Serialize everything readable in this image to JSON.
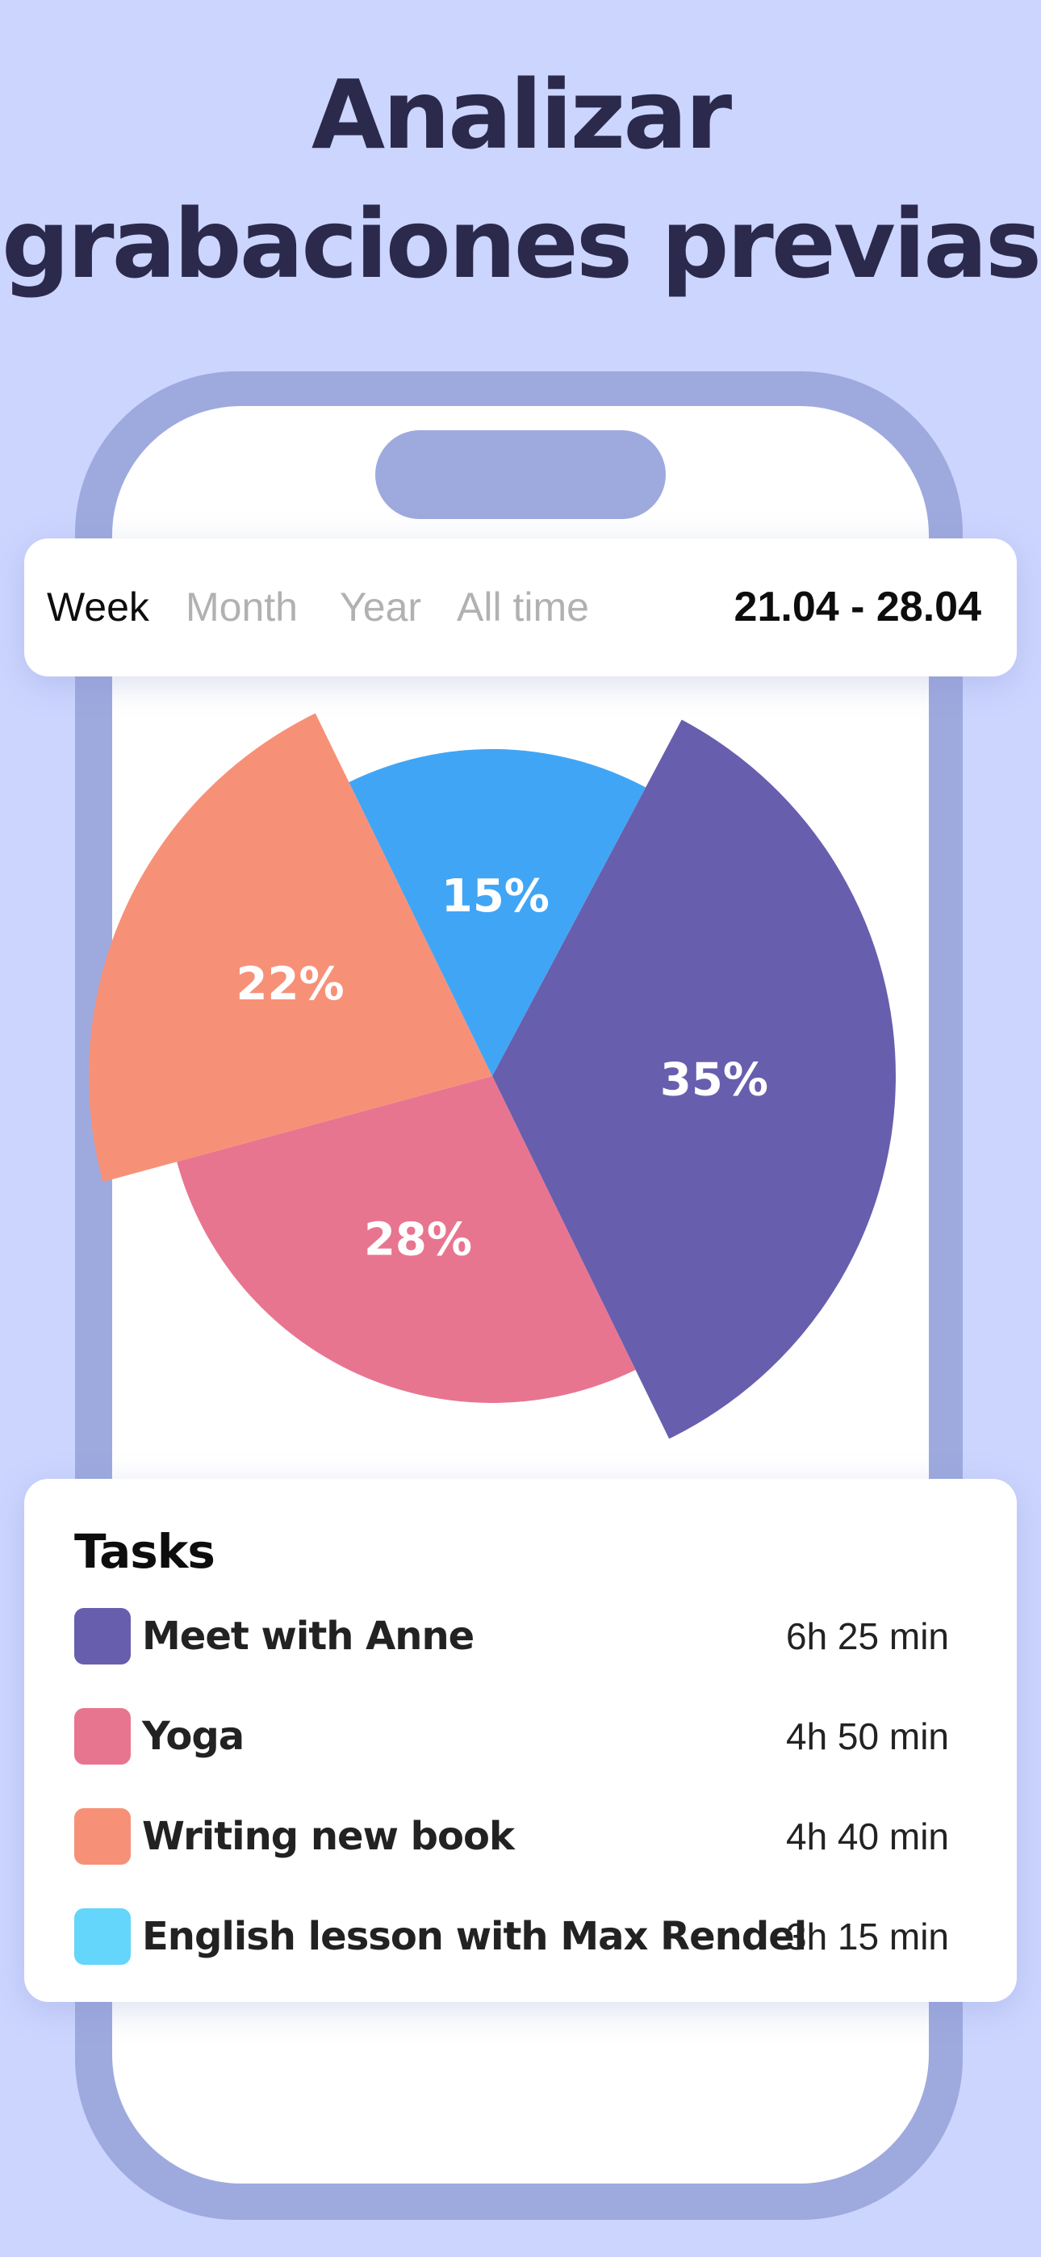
{
  "headline": {
    "line1": "Analizar",
    "line2": "grabaciones previas"
  },
  "period_selector": {
    "tabs": [
      "Week",
      "Month",
      "Year",
      "All time"
    ],
    "selected": "Week",
    "date_range": "21.04 - 28.04"
  },
  "chart_data": {
    "type": "pie",
    "slices": [
      {
        "label": "35%",
        "value": 35,
        "color": "#685eae",
        "exploded": true
      },
      {
        "label": "28%",
        "value": 28,
        "color": "#e8758f",
        "exploded": false
      },
      {
        "label": "22%",
        "value": 22,
        "color": "#f69178",
        "exploded": true
      },
      {
        "label": "15%",
        "value": 15,
        "color": "#41a5f5",
        "exploded": false
      }
    ]
  },
  "tasks": {
    "title": "Tasks",
    "items": [
      {
        "name": "Meet with Anne",
        "duration": "6h 25 min",
        "color": "#685eae"
      },
      {
        "name": "Yoga",
        "duration": "4h 50 min",
        "color": "#e8758f"
      },
      {
        "name": "Writing new book",
        "duration": "4h 40 min",
        "color": "#f69178"
      },
      {
        "name": "English lesson with Max Rendel",
        "duration": "3h 15 min",
        "color": "#64d5fb"
      }
    ]
  },
  "colors": {
    "background": "#ccd5fe",
    "phone_frame": "#9eaade",
    "headline": "#2b2a4c"
  }
}
